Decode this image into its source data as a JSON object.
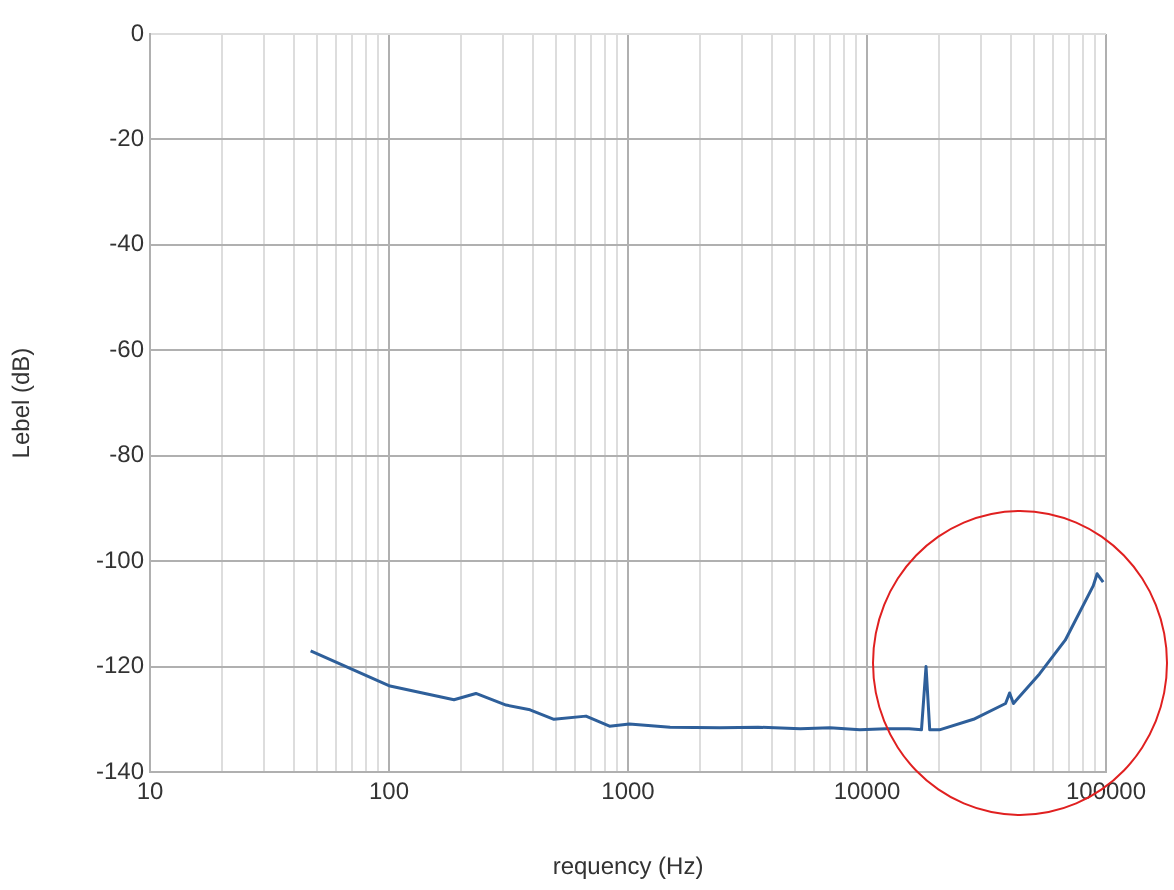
{
  "chart_data": {
    "type": "line",
    "xlabel": "requency (Hz)",
    "ylabel": "Lebel (dB)",
    "log": "x",
    "grid": true,
    "legend": false,
    "marker": "none",
    "line_style": "solid",
    "xlim": [
      10,
      100000
    ],
    "xticks": [
      10,
      {
        "value": 20,
        "label": null
      },
      {
        "value": 30,
        "label": null
      },
      {
        "value": 40,
        "label": null
      },
      {
        "value": 50,
        "label": null
      },
      {
        "value": 60,
        "label": null
      },
      {
        "value": 70,
        "label": null
      },
      {
        "value": 80,
        "label": null
      },
      {
        "value": 90,
        "label": null
      },
      100,
      {
        "value": 200,
        "label": null
      },
      {
        "value": 300,
        "label": null
      },
      {
        "value": 400,
        "label": null
      },
      {
        "value": 500,
        "label": null
      },
      {
        "value": 600,
        "label": null
      },
      {
        "value": 700,
        "label": null
      },
      {
        "value": 800,
        "label": null
      },
      {
        "value": 900,
        "label": null
      },
      1000,
      {
        "value": 2000,
        "label": null
      },
      {
        "value": 3000,
        "label": null
      },
      {
        "value": 4000,
        "label": null
      },
      {
        "value": 5000,
        "label": null
      },
      {
        "value": 6000,
        "label": null
      },
      {
        "value": 7000,
        "label": null
      },
      {
        "value": 8000,
        "label": null
      },
      {
        "value": 9000,
        "label": null
      },
      10000,
      {
        "value": 20000,
        "label": null
      },
      {
        "value": 30000,
        "label": null
      },
      {
        "value": 40000,
        "label": null
      },
      {
        "value": 50000,
        "label": null
      },
      {
        "value": 60000,
        "label": null
      },
      {
        "value": 70000,
        "label": null
      },
      {
        "value": 80000,
        "label": null
      },
      {
        "value": 90000,
        "label": null
      },
      100000
    ],
    "ylim": [
      -140,
      0
    ],
    "yticks": [
      -140,
      -120,
      -100,
      -80,
      -60,
      -40,
      -20,
      0
    ],
    "series": [
      {
        "color": "#2e5f9a",
        "x": [
          47,
          101,
          187,
          231,
          309,
          389,
          490,
          667,
          837,
          1013,
          1500,
          2422,
          3500,
          5260,
          7000,
          9340,
          12000,
          15000,
          16900,
          17660,
          18300,
          20100,
          27900,
          38000,
          39500,
          41000,
          52700,
          67500,
          88400,
          91800,
          97300
        ],
        "values": [
          -117,
          -123.7,
          -126.3,
          -125.1,
          -127.3,
          -128.2,
          -130,
          -129.4,
          -131.3,
          -130.9,
          -131.5,
          -131.6,
          -131.5,
          -131.8,
          -131.6,
          -132,
          -131.8,
          -131.8,
          -132,
          -120,
          -132,
          -132,
          -130,
          -127,
          -125,
          -127,
          -121.4,
          -115,
          -104.7,
          -102.4,
          -104
        ]
      }
    ]
  }
}
